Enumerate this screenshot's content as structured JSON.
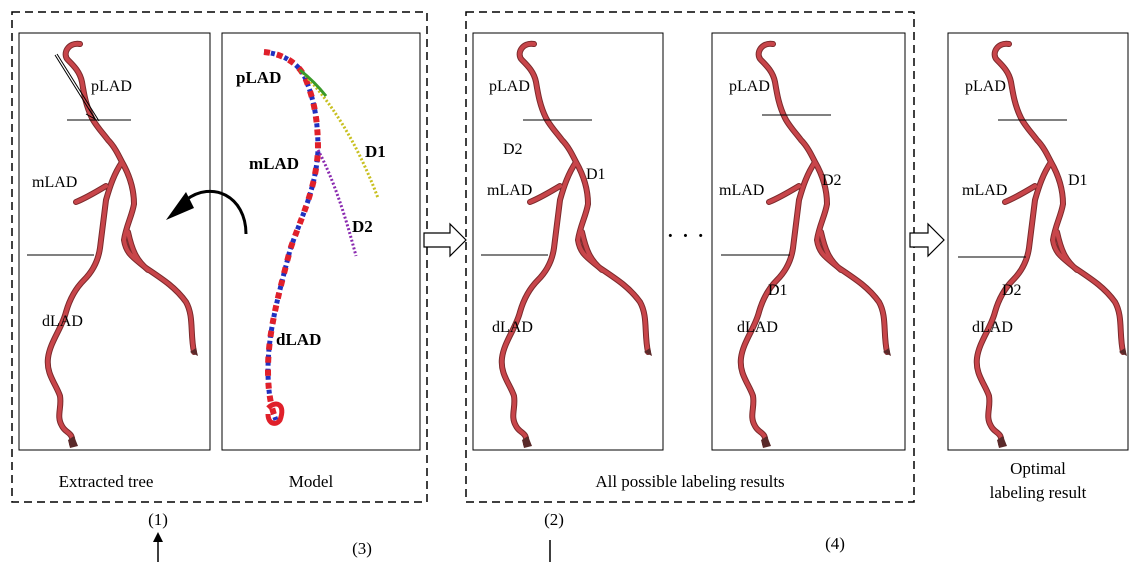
{
  "panels": {
    "extracted_tree": {
      "caption": "Extracted tree",
      "labels": {
        "plad": "pLAD",
        "mlad": "mLAD",
        "dlad": "dLAD"
      }
    },
    "model": {
      "caption": "Model",
      "labels": {
        "plad": "pLAD",
        "mlad": "mLAD",
        "dlad": "dLAD",
        "d1": "D1",
        "d2": "D2"
      }
    },
    "possible_a": {
      "labels": {
        "plad": "pLAD",
        "d2": "D2",
        "mlad": "mLAD",
        "d1": "D1",
        "dlad": "dLAD"
      }
    },
    "possible_b": {
      "labels": {
        "plad": "pLAD",
        "mlad": "mLAD",
        "d2": "D2",
        "d1": "D1",
        "dlad": "dLAD"
      }
    },
    "optimal": {
      "caption_line1": "Optimal",
      "caption_line2": "labeling result",
      "labels": {
        "plad": "pLAD",
        "mlad": "mLAD",
        "d1": "D1",
        "d2": "D2",
        "dlad": "dLAD"
      }
    }
  },
  "group_captions": {
    "possible": "All possible labeling results"
  },
  "ellipsis": "· · ·",
  "step_markers": {
    "s1": "(1)",
    "s2": "(2)",
    "s3": "(3)",
    "s4": "(4)"
  },
  "colors": {
    "vessel": "#c8454a",
    "model_red": "#e0202a",
    "model_blue": "#2030c0",
    "model_green": "#3a9a2a",
    "model_yellow": "#c8c020",
    "model_purple": "#8a2ab0"
  },
  "icons": [
    "curved-arrow-icon",
    "hollow-right-arrow-icon",
    "up-arrow-icon"
  ]
}
